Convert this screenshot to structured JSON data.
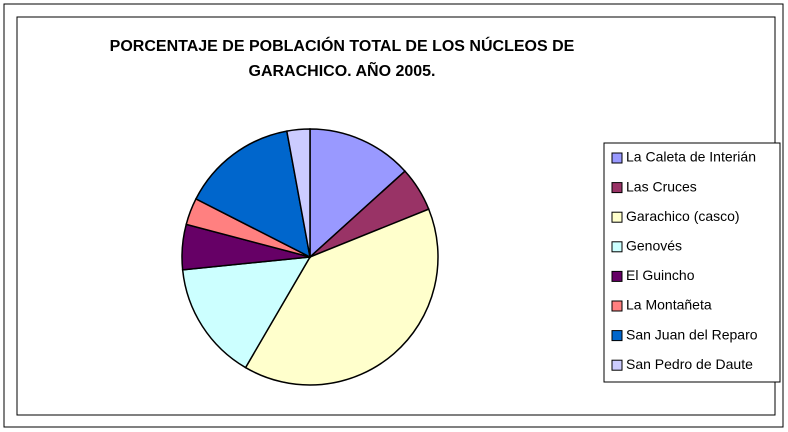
{
  "chart_data": {
    "type": "pie",
    "title_lines": [
      "PORCENTAJE DE POBLACIÓN TOTAL DE LOS NÚCLEOS DE",
      "GARACHICO. AÑO 2005."
    ],
    "categories": [
      "La Caleta de Interián",
      "Las Cruces",
      "Garachico (casco)",
      "Genovés",
      "El Guincho",
      "La Montañeta",
      "San Juan del Reparo",
      "San Pedro de Daute"
    ],
    "values": [
      13.3,
      5.6,
      39.5,
      15.0,
      5.7,
      3.4,
      14.6,
      2.9
    ],
    "colors": [
      "#9999ff",
      "#993366",
      "#ffffcc",
      "#ccffff",
      "#660066",
      "#ff8080",
      "#0066cc",
      "#ccccff"
    ],
    "legend": "right"
  }
}
